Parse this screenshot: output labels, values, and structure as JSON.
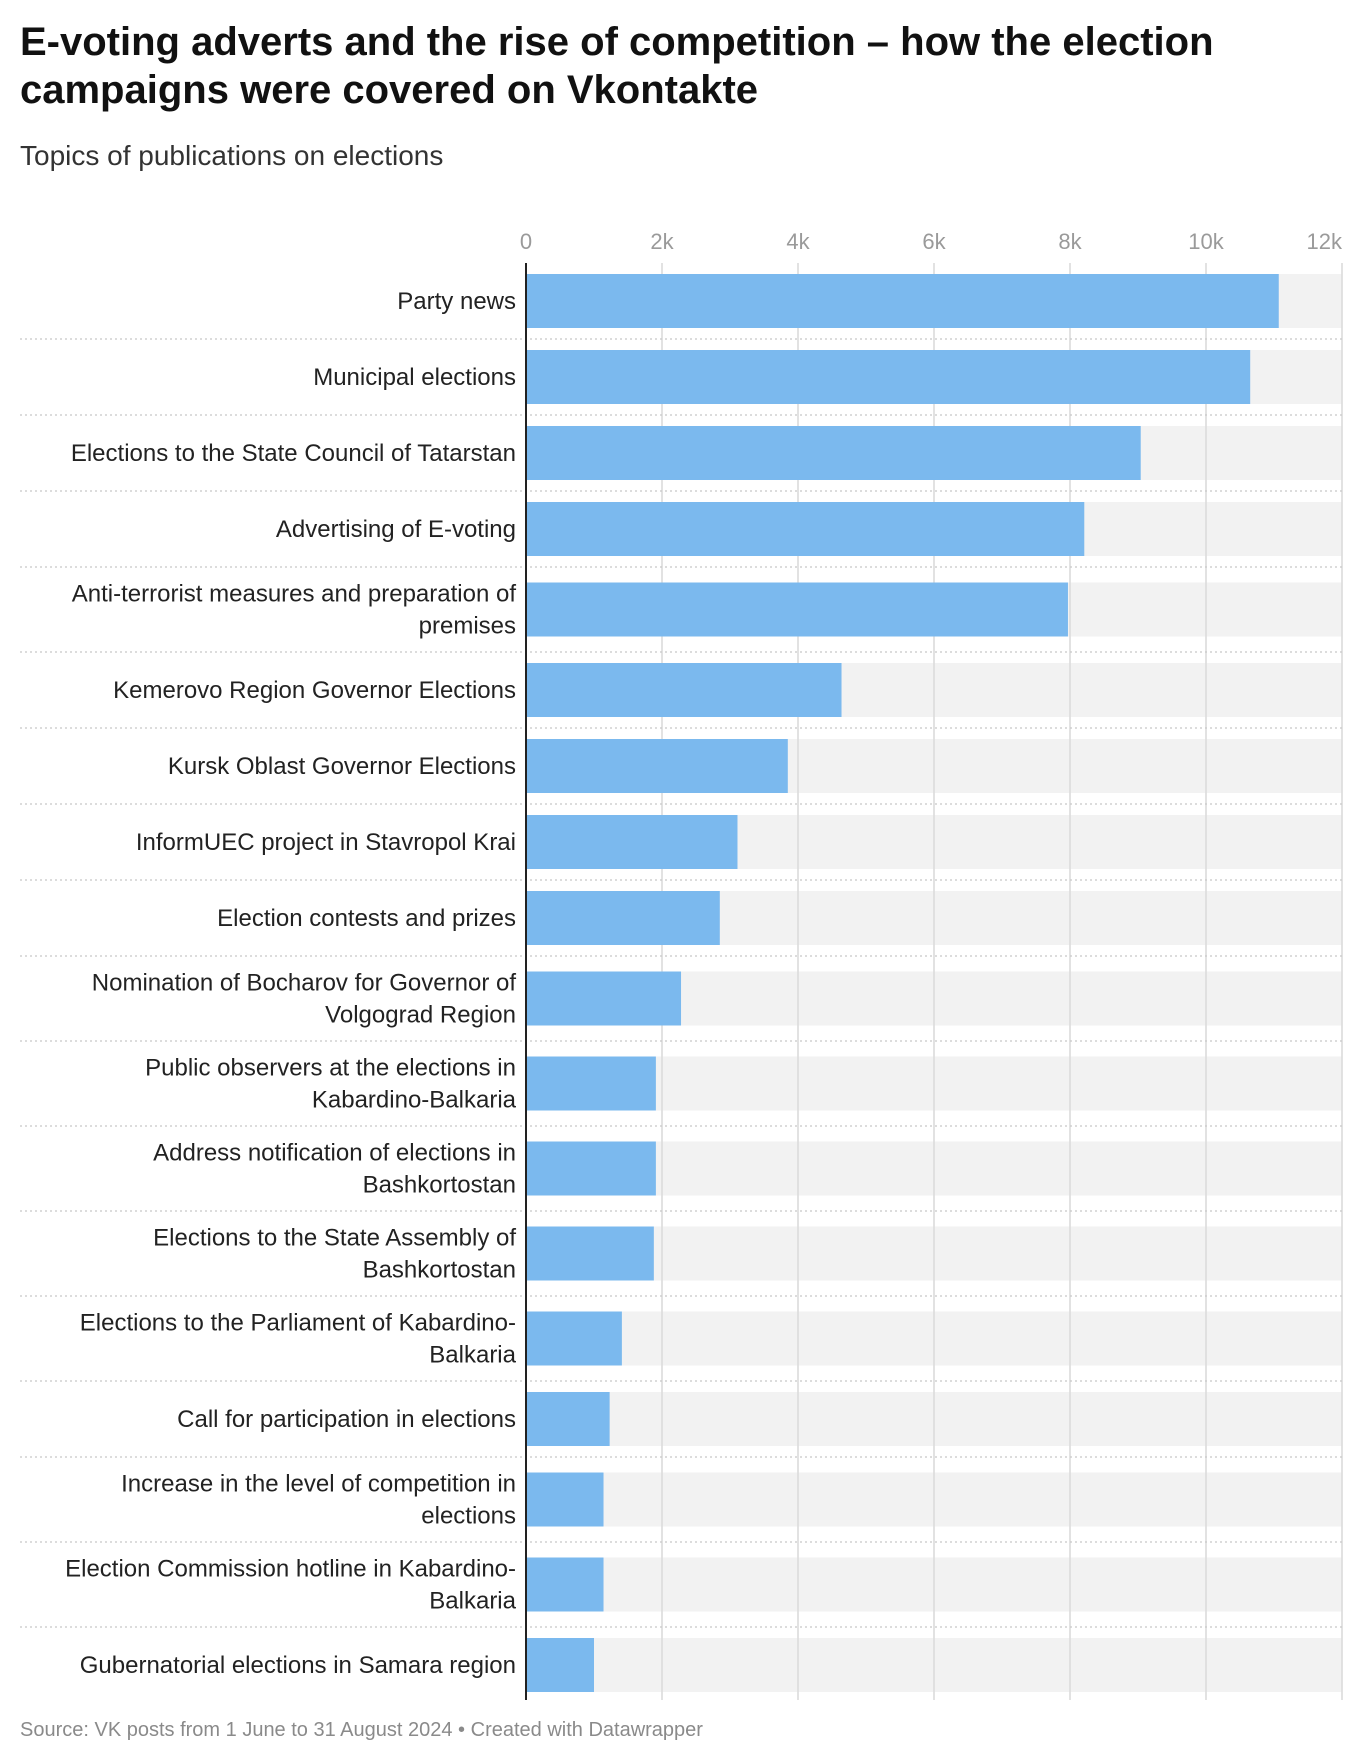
{
  "title": "E-voting adverts and the rise of competition – how the election campaigns were covered on Vkontakte",
  "subtitle": "Topics of publications on elections",
  "footer": {
    "source": "Source: VK posts from 1 June to 31 August 2024",
    "separator": " • ",
    "credit": "Created with Datawrapper"
  },
  "colors": {
    "bar": "#7bb9ee",
    "track": "#f2f2f2",
    "grid": "#d9d9d9",
    "axis": "#222222",
    "separator": "#c8c8c8"
  },
  "chart_data": {
    "type": "bar",
    "orientation": "horizontal",
    "xlim": [
      0,
      12000
    ],
    "ticks": [
      {
        "value": 0,
        "label": "0"
      },
      {
        "value": 2000,
        "label": "2k"
      },
      {
        "value": 4000,
        "label": "4k"
      },
      {
        "value": 6000,
        "label": "6k"
      },
      {
        "value": 8000,
        "label": "8k"
      },
      {
        "value": 10000,
        "label": "10k"
      },
      {
        "value": 12000,
        "label": "12k"
      }
    ],
    "categories": [
      [
        "Party news"
      ],
      [
        "Municipal elections"
      ],
      [
        "Elections to the State Council of Tatarstan"
      ],
      [
        "Advertising of E-voting"
      ],
      [
        "Anti-terrorist measures and preparation of",
        "premises"
      ],
      [
        "Kemerovo Region Governor Elections"
      ],
      [
        "Kursk Oblast Governor Elections"
      ],
      [
        "InformUEC project in Stavropol Krai"
      ],
      [
        "Election contests and prizes"
      ],
      [
        "Nomination of Bocharov for Governor of",
        "Volgograd Region"
      ],
      [
        "Public observers at the elections in",
        "Kabardino-Balkaria"
      ],
      [
        "Address notification of elections in",
        "Bashkortostan"
      ],
      [
        "Elections to the State Assembly of",
        "Bashkortostan"
      ],
      [
        "Elections to the Parliament of Kabardino-",
        "Balkaria"
      ],
      [
        "Call for participation in elections"
      ],
      [
        "Increase in the level of competition in",
        "elections"
      ],
      [
        "Election Commission hotline in Kabardino-",
        "Balkaria"
      ],
      [
        "Gubernatorial elections in Samara region"
      ]
    ],
    "values": [
      11070,
      10650,
      9040,
      8210,
      7970,
      4640,
      3850,
      3110,
      2850,
      2280,
      1910,
      1910,
      1880,
      1410,
      1230,
      1140,
      1140,
      1000
    ],
    "grid": true,
    "legend": "none"
  }
}
